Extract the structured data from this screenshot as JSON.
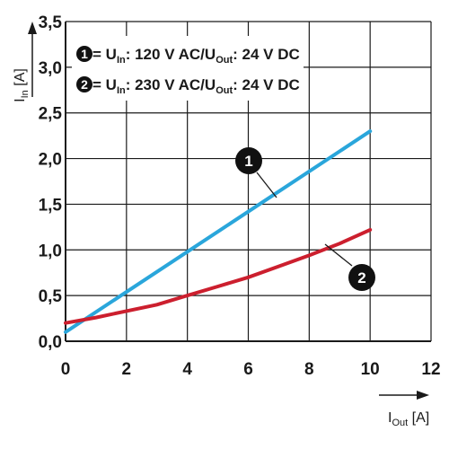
{
  "chart_data": {
    "type": "line",
    "xlabel": {
      "main": "I",
      "sub": "Out",
      "unit": " [A]"
    },
    "ylabel": {
      "main": "I",
      "sub": "In",
      "unit": " [A]"
    },
    "xlim": [
      0,
      12
    ],
    "ylim": [
      0,
      3.5
    ],
    "x_ticks": [
      "0",
      "2",
      "4",
      "6",
      "8",
      "10",
      "12"
    ],
    "y_ticks": [
      "0,0",
      "0,5",
      "1,0",
      "1,5",
      "2,0",
      "2,5",
      "3,0",
      "3,5"
    ],
    "grid": true,
    "legend_position": "top-left",
    "series": [
      {
        "marker": "1",
        "label_parts": {
          "p1": " = U",
          "sub1": "In",
          "p2": ": 120 V AC/U",
          "sub2": "Out",
          "p3": ": 24 V DC"
        },
        "color": "#2aa6db",
        "x": [
          0,
          10
        ],
        "y": [
          0.1,
          2.3
        ]
      },
      {
        "marker": "2",
        "label_parts": {
          "p1": " = U",
          "sub1": "In",
          "p2": ": 230 V AC/U",
          "sub2": "Out",
          "p3": ": 24 V DC"
        },
        "color": "#cc1f2e",
        "x": [
          0,
          1,
          2,
          3,
          4,
          5,
          6,
          7,
          8,
          9,
          10
        ],
        "y": [
          0.2,
          0.26,
          0.33,
          0.4,
          0.5,
          0.6,
          0.7,
          0.82,
          0.94,
          1.07,
          1.22
        ]
      }
    ]
  }
}
